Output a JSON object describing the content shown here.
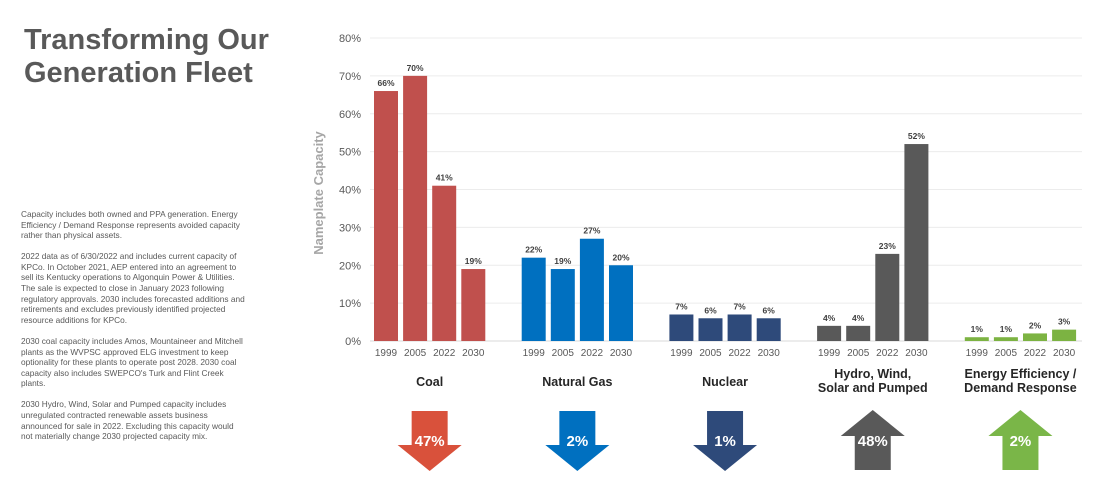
{
  "title": "Transforming Our Generation Fleet",
  "notes": [
    "Capacity includes both owned and PPA generation. Energy Efficiency / Demand Response represents avoided capacity rather than physical assets.",
    "2022 data as of 6/30/2022 and includes current capacity of KPCo. In October 2021, AEP entered into an agreement to sell its Kentucky operations to Algonquin Power & Utilities. The sale is expected to close in January 2023 following regulatory approvals. 2030 includes forecasted additions and retirements and excludes previously identified projected resource additions for KPCo.",
    "2030 coal capacity includes Amos, Mountaineer and Mitchell plants as the WVPSC approved ELG investment to keep optionality for these plants to operate post 2028. 2030 coal capacity also includes SWEPCO's Turk and Flint Creek plants.",
    "2030 Hydro, Wind, Solar and Pumped capacity includes unregulated contracted renewable assets business announced for sale in 2022. Excluding this capacity would not materially change 2030 projected capacity mix."
  ],
  "chart_data": {
    "type": "bar",
    "ylabel": "Nameplate Capacity",
    "ylim": [
      0,
      80
    ],
    "yticks": [
      "0%",
      "10%",
      "20%",
      "30%",
      "40%",
      "50%",
      "60%",
      "70%",
      "80%"
    ],
    "years": [
      "1999",
      "2005",
      "2022",
      "2030"
    ],
    "grid": true,
    "groups": [
      {
        "name": "Coal",
        "color": "#c0504d",
        "values": [
          66,
          70,
          41,
          19
        ],
        "labels": [
          "66%",
          "70%",
          "41%",
          "19%"
        ],
        "change": "47%",
        "direction": "down",
        "arrow_color": "#d9513b"
      },
      {
        "name": "Natural Gas",
        "color": "#0070c0",
        "values": [
          22,
          19,
          27,
          20
        ],
        "labels": [
          "22%",
          "19%",
          "27%",
          "20%"
        ],
        "change": "2%",
        "direction": "down",
        "arrow_color": "#0070c0"
      },
      {
        "name": "Nuclear",
        "color": "#2e4a7a",
        "values": [
          7,
          6,
          7,
          6
        ],
        "labels": [
          "7%",
          "6%",
          "7%",
          "6%"
        ],
        "change": "1%",
        "direction": "down",
        "arrow_color": "#2e4a7a"
      },
      {
        "name": "Hydro, Wind, Solar and Pumped",
        "color": "#595959",
        "values": [
          4,
          4,
          23,
          52
        ],
        "labels": [
          "4%",
          "4%",
          "23%",
          "52%"
        ],
        "change": "48%",
        "direction": "up",
        "arrow_color": "#595959"
      },
      {
        "name": "Energy Efficiency / Demand Response",
        "color": "#7cb342",
        "values": [
          1,
          1,
          2,
          3
        ],
        "labels": [
          "1%",
          "1%",
          "2%",
          "3%"
        ],
        "change": "2%",
        "direction": "up",
        "arrow_color": "#7ab648"
      }
    ]
  }
}
